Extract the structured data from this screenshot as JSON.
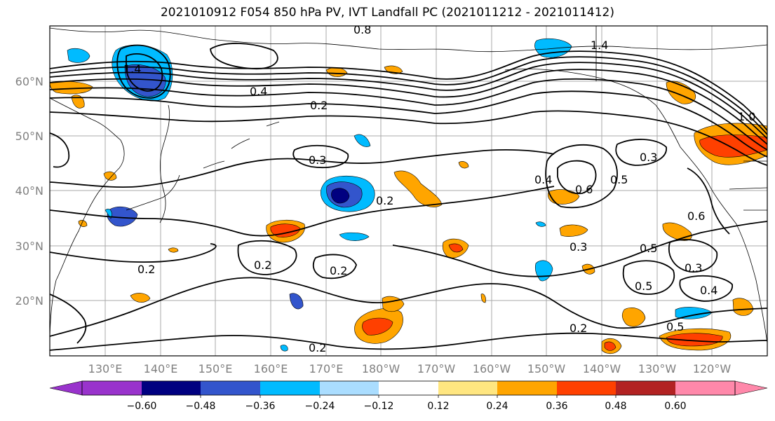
{
  "title": "2021010912 F054 850 hPa PV, IVT Landfall PC (2021011212 - 2021011412)",
  "lat_labels": [
    "60°N",
    "50°N",
    "40°N",
    "30°N",
    "20°N"
  ],
  "lon_labels": [
    "130°E",
    "140°E",
    "150°E",
    "160°E",
    "170°E",
    "180°W",
    "170°W",
    "160°W",
    "150°W",
    "140°W",
    "130°W",
    "120°W"
  ],
  "colorbar": {
    "ticks": [
      "−0.60",
      "−0.48",
      "−0.36",
      "−0.24",
      "−0.12",
      "0.12",
      "0.24",
      "0.36",
      "0.48",
      "0.60"
    ],
    "colors": [
      "#9933cc",
      "#000080",
      "#3355cc",
      "#00bbff",
      "#aaddff",
      "#ffffff",
      "#ffe680",
      "#ffa500",
      "#ff4000",
      "#b22222",
      "#ff88aa",
      "#ff88aa"
    ]
  },
  "contour_labels": [
    "0.2",
    "0.2",
    "0.2",
    "0.2",
    "0.2",
    "0.2",
    "0.2",
    "0.3",
    "0.3",
    "0.3",
    "0.3",
    "0.4",
    "0.4",
    "0.4",
    "0.5",
    "0.5",
    "0.5",
    "0.5",
    "0.6",
    "0.6",
    "0.8",
    "1.4",
    "1.4",
    "1.0"
  ]
}
